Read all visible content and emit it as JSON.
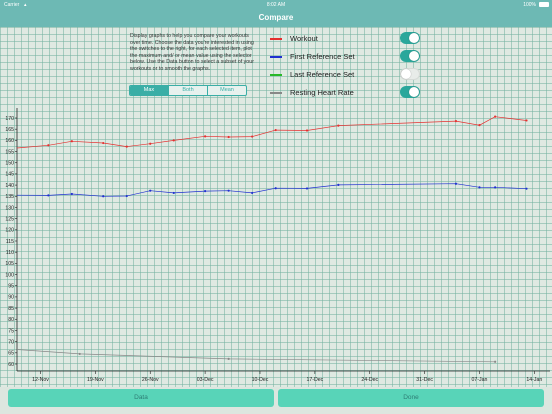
{
  "status_bar": {
    "carrier": "Carrier",
    "time": "8:02 AM",
    "battery": "100%"
  },
  "nav": {
    "title": "Compare"
  },
  "description": "Display graphs to help you compare your workouts over time. Choose the data you're interested in using the switches to the right, for each selected item, plot the maximum and/ or mean value using the selector below. Use the Data button to select a subset of your workouts or to smooth the graphs.",
  "segments": {
    "options": [
      "Max",
      "Both",
      "Mean"
    ],
    "selected": "Max"
  },
  "legend": [
    {
      "label": "Workout",
      "color": "#e53030",
      "on": true
    },
    {
      "label": "First Reference Set",
      "color": "#2030d0",
      "on": true
    },
    {
      "label": "Last Reference Set",
      "color": "#28b828",
      "on": false
    },
    {
      "label": "Resting Heart Rate",
      "color": "#888888",
      "on": true
    }
  ],
  "buttons": {
    "data": "Data",
    "done": "Done"
  },
  "chart_data": {
    "type": "line",
    "ylim": [
      60,
      170
    ],
    "yticks": [
      170,
      165,
      160,
      155,
      150,
      145,
      140,
      135,
      130,
      125,
      120,
      115,
      110,
      105,
      100,
      95,
      90,
      85,
      80,
      75,
      70,
      65,
      60
    ],
    "x_labels": [
      "12-Nov",
      "19-Nov",
      "26-Nov",
      "03-Dec",
      "10-Dec",
      "17-Dec",
      "24-Dec",
      "31-Dec",
      "07-Jan",
      "14-Jan"
    ],
    "x_days": [
      0,
      7,
      14,
      21,
      28,
      35,
      42,
      49,
      56,
      63
    ],
    "xlim": [
      -3,
      65
    ],
    "series": [
      {
        "name": "Workout",
        "color": "#e53030",
        "x": [
          -3,
          1,
          4,
          8,
          11,
          14,
          17,
          21,
          24,
          27,
          30,
          34,
          38,
          53,
          56,
          58,
          62
        ],
        "y": [
          156.6,
          157.8,
          159.6,
          158.8,
          157.2,
          158.5,
          160,
          161.8,
          161.5,
          161.7,
          164.6,
          164.4,
          166.6,
          168.6,
          166.8,
          170.6,
          168.9
        ]
      },
      {
        "name": "First Reference Set",
        "color": "#2030d0",
        "x": [
          -3,
          1,
          4,
          8,
          11,
          14,
          17,
          21,
          24,
          27,
          30,
          34,
          38,
          53,
          56,
          58,
          62
        ],
        "y": [
          135.5,
          135.4,
          136,
          135,
          135.1,
          137.5,
          136.5,
          137.3,
          137.5,
          136.5,
          138.6,
          138.5,
          140.1,
          140.6,
          139,
          139,
          138.4
        ],
        "markers": [
          1,
          4,
          8,
          11,
          14,
          17,
          21,
          24,
          27,
          30,
          34,
          38,
          53,
          56,
          58,
          62
        ]
      },
      {
        "name": "Resting Heart Rate",
        "color": "#888888",
        "x": [
          -3,
          5,
          24,
          58
        ],
        "y": [
          66.5,
          64.5,
          62.3,
          61
        ],
        "markers": [
          5,
          24,
          58
        ]
      }
    ]
  }
}
